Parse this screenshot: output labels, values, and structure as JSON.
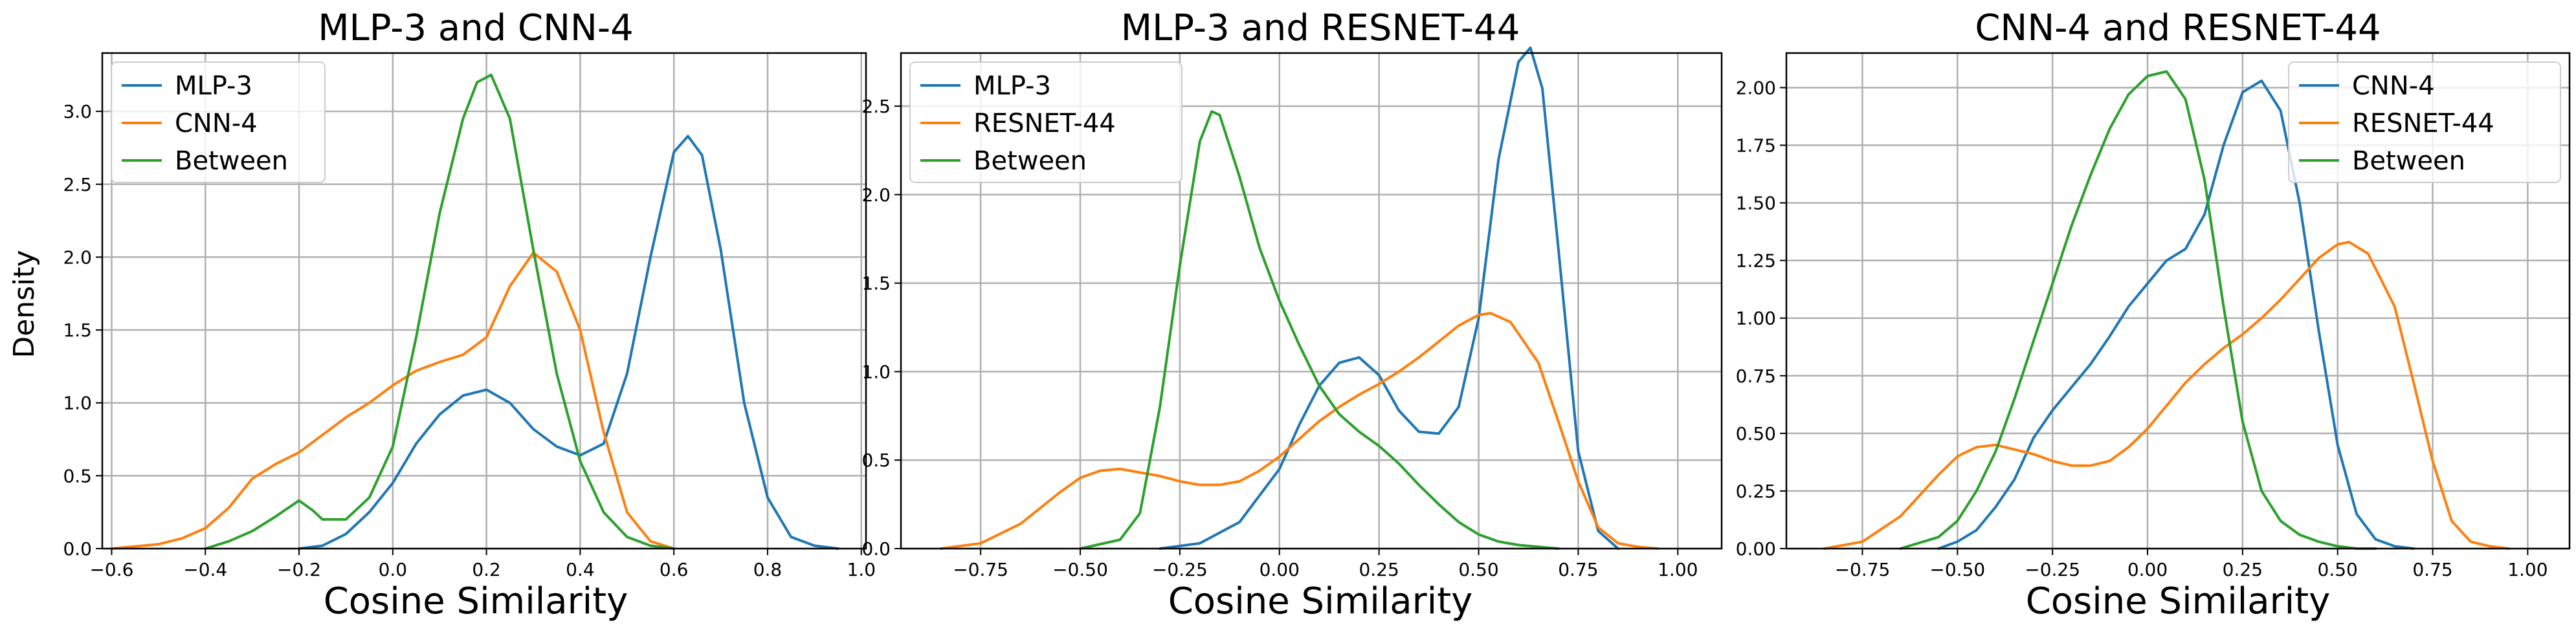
{
  "figure": {
    "ylabel": "Density",
    "xlabel": "Cosine Similarity"
  },
  "colors": {
    "blue": "#1f77b4",
    "orange": "#ff7f0e",
    "green": "#2ca02c"
  },
  "chart_data": [
    {
      "type": "line",
      "title": "MLP-3 and CNN-4",
      "xlabel": "Cosine Similarity",
      "ylabel": "Density",
      "xlim": [
        -0.62,
        1.01
      ],
      "ylim": [
        0,
        3.4
      ],
      "xticks": [
        -0.6,
        -0.4,
        -0.2,
        0.0,
        0.2,
        0.4,
        0.6,
        0.8,
        1.0
      ],
      "xtick_labels": [
        "−0.6",
        "−0.4",
        "−0.2",
        "0.0",
        "0.2",
        "0.4",
        "0.6",
        "0.8",
        "1.0"
      ],
      "yticks": [
        0.0,
        0.5,
        1.0,
        1.5,
        2.0,
        2.5,
        3.0
      ],
      "ytick_labels": [
        "0.0",
        "0.5",
        "1.0",
        "1.5",
        "2.0",
        "2.5",
        "3.0"
      ],
      "grid": true,
      "legend_position": "upper left",
      "series": [
        {
          "name": "MLP-3",
          "color": "#1f77b4",
          "x": [
            -0.2,
            -0.15,
            -0.1,
            -0.05,
            0.0,
            0.05,
            0.1,
            0.15,
            0.2,
            0.25,
            0.3,
            0.35,
            0.4,
            0.45,
            0.5,
            0.55,
            0.6,
            0.63,
            0.66,
            0.7,
            0.75,
            0.8,
            0.85,
            0.9,
            0.95
          ],
          "y": [
            0.0,
            0.02,
            0.1,
            0.25,
            0.45,
            0.72,
            0.92,
            1.05,
            1.09,
            1.0,
            0.82,
            0.7,
            0.64,
            0.72,
            1.2,
            2.0,
            2.72,
            2.83,
            2.7,
            2.05,
            1.0,
            0.35,
            0.08,
            0.02,
            0.0
          ]
        },
        {
          "name": "CNN-4",
          "color": "#ff7f0e",
          "x": [
            -0.6,
            -0.5,
            -0.45,
            -0.4,
            -0.35,
            -0.3,
            -0.25,
            -0.2,
            -0.15,
            -0.1,
            -0.05,
            0.0,
            0.05,
            0.1,
            0.15,
            0.2,
            0.25,
            0.3,
            0.35,
            0.4,
            0.45,
            0.5,
            0.55,
            0.6
          ],
          "y": [
            0.0,
            0.03,
            0.07,
            0.14,
            0.28,
            0.48,
            0.58,
            0.66,
            0.78,
            0.9,
            1.0,
            1.12,
            1.22,
            1.28,
            1.33,
            1.45,
            1.8,
            2.03,
            1.9,
            1.5,
            0.8,
            0.25,
            0.05,
            0.0
          ]
        },
        {
          "name": "Between",
          "color": "#2ca02c",
          "x": [
            -0.4,
            -0.35,
            -0.3,
            -0.25,
            -0.2,
            -0.17,
            -0.15,
            -0.1,
            -0.05,
            0.0,
            0.05,
            0.1,
            0.15,
            0.18,
            0.21,
            0.25,
            0.3,
            0.35,
            0.4,
            0.45,
            0.5,
            0.55,
            0.6
          ],
          "y": [
            0.0,
            0.05,
            0.12,
            0.22,
            0.33,
            0.26,
            0.2,
            0.2,
            0.35,
            0.7,
            1.45,
            2.3,
            2.95,
            3.2,
            3.25,
            2.95,
            2.05,
            1.2,
            0.6,
            0.25,
            0.08,
            0.02,
            0.0
          ]
        }
      ]
    },
    {
      "type": "line",
      "title": "MLP-3 and RESNET-44",
      "xlabel": "Cosine Similarity",
      "ylabel": "",
      "xlim": [
        -0.95,
        1.11
      ],
      "ylim": [
        0,
        2.8
      ],
      "xticks": [
        -0.75,
        -0.5,
        -0.25,
        0.0,
        0.25,
        0.5,
        0.75,
        1.0
      ],
      "xtick_labels": [
        "−0.75",
        "−0.50",
        "−0.25",
        "0.00",
        "0.25",
        "0.50",
        "0.75",
        "1.00"
      ],
      "yticks": [
        0.0,
        0.5,
        1.0,
        1.5,
        2.0,
        2.5
      ],
      "ytick_labels": [
        "0.0",
        "0.5",
        "1.0",
        "1.5",
        "2.0",
        "2.5"
      ],
      "grid": true,
      "legend_position": "upper left",
      "series": [
        {
          "name": "MLP-3",
          "color": "#1f77b4",
          "x": [
            -0.3,
            -0.2,
            -0.1,
            0.0,
            0.05,
            0.1,
            0.15,
            0.2,
            0.25,
            0.3,
            0.35,
            0.4,
            0.45,
            0.5,
            0.55,
            0.6,
            0.63,
            0.66,
            0.7,
            0.75,
            0.8,
            0.85
          ],
          "y": [
            0.0,
            0.03,
            0.15,
            0.45,
            0.7,
            0.92,
            1.05,
            1.08,
            0.98,
            0.78,
            0.66,
            0.65,
            0.8,
            1.3,
            2.2,
            2.75,
            2.83,
            2.6,
            1.7,
            0.55,
            0.1,
            0.0
          ]
        },
        {
          "name": "RESNET-44",
          "color": "#ff7f0e",
          "x": [
            -0.85,
            -0.75,
            -0.65,
            -0.55,
            -0.5,
            -0.45,
            -0.4,
            -0.35,
            -0.3,
            -0.25,
            -0.2,
            -0.15,
            -0.1,
            -0.05,
            0.0,
            0.05,
            0.1,
            0.15,
            0.2,
            0.25,
            0.3,
            0.35,
            0.4,
            0.45,
            0.5,
            0.53,
            0.58,
            0.65,
            0.7,
            0.75,
            0.8,
            0.85,
            0.9,
            0.95
          ],
          "y": [
            0.0,
            0.03,
            0.14,
            0.32,
            0.4,
            0.44,
            0.45,
            0.43,
            0.41,
            0.38,
            0.36,
            0.36,
            0.38,
            0.44,
            0.52,
            0.62,
            0.72,
            0.8,
            0.87,
            0.93,
            1.0,
            1.08,
            1.17,
            1.26,
            1.32,
            1.33,
            1.28,
            1.05,
            0.72,
            0.38,
            0.12,
            0.03,
            0.01,
            0.0
          ]
        },
        {
          "name": "Between",
          "color": "#2ca02c",
          "x": [
            -0.5,
            -0.4,
            -0.35,
            -0.3,
            -0.25,
            -0.2,
            -0.17,
            -0.15,
            -0.1,
            -0.05,
            0.0,
            0.05,
            0.1,
            0.15,
            0.2,
            0.25,
            0.3,
            0.35,
            0.4,
            0.45,
            0.5,
            0.55,
            0.6,
            0.65,
            0.7
          ],
          "y": [
            0.0,
            0.05,
            0.2,
            0.8,
            1.6,
            2.3,
            2.47,
            2.45,
            2.1,
            1.7,
            1.4,
            1.15,
            0.92,
            0.76,
            0.66,
            0.58,
            0.48,
            0.36,
            0.25,
            0.15,
            0.08,
            0.04,
            0.02,
            0.01,
            0.0
          ]
        }
      ]
    },
    {
      "type": "line",
      "title": "CNN-4 and RESNET-44",
      "xlabel": "Cosine Similarity",
      "ylabel": "",
      "xlim": [
        -0.95,
        1.11
      ],
      "ylim": [
        0,
        2.15
      ],
      "xticks": [
        -0.75,
        -0.5,
        -0.25,
        0.0,
        0.25,
        0.5,
        0.75,
        1.0
      ],
      "xtick_labels": [
        "−0.75",
        "−0.50",
        "−0.25",
        "0.00",
        "0.25",
        "0.50",
        "0.75",
        "1.00"
      ],
      "yticks": [
        0.0,
        0.25,
        0.5,
        0.75,
        1.0,
        1.25,
        1.5,
        1.75,
        2.0
      ],
      "ytick_labels": [
        "0.00",
        "0.25",
        "0.50",
        "0.75",
        "1.00",
        "1.25",
        "1.50",
        "1.75",
        "2.00"
      ],
      "grid": true,
      "legend_position": "upper right",
      "series": [
        {
          "name": "CNN-4",
          "color": "#1f77b4",
          "x": [
            -0.55,
            -0.5,
            -0.45,
            -0.4,
            -0.35,
            -0.3,
            -0.25,
            -0.2,
            -0.15,
            -0.1,
            -0.05,
            0.0,
            0.05,
            0.1,
            0.15,
            0.2,
            0.25,
            0.3,
            0.35,
            0.4,
            0.45,
            0.5,
            0.55,
            0.6,
            0.65,
            0.7
          ],
          "y": [
            0.0,
            0.03,
            0.08,
            0.18,
            0.3,
            0.48,
            0.6,
            0.7,
            0.8,
            0.92,
            1.05,
            1.15,
            1.25,
            1.3,
            1.45,
            1.75,
            1.98,
            2.03,
            1.9,
            1.5,
            0.95,
            0.45,
            0.15,
            0.04,
            0.01,
            0.0
          ]
        },
        {
          "name": "RESNET-44",
          "color": "#ff7f0e",
          "x": [
            -0.85,
            -0.75,
            -0.65,
            -0.55,
            -0.5,
            -0.45,
            -0.4,
            -0.35,
            -0.3,
            -0.25,
            -0.2,
            -0.15,
            -0.1,
            -0.05,
            0.0,
            0.05,
            0.1,
            0.15,
            0.2,
            0.25,
            0.3,
            0.35,
            0.4,
            0.45,
            0.5,
            0.53,
            0.58,
            0.65,
            0.7,
            0.75,
            0.8,
            0.85,
            0.9,
            0.95
          ],
          "y": [
            0.0,
            0.03,
            0.14,
            0.32,
            0.4,
            0.44,
            0.45,
            0.43,
            0.41,
            0.38,
            0.36,
            0.36,
            0.38,
            0.44,
            0.52,
            0.62,
            0.72,
            0.8,
            0.87,
            0.93,
            1.0,
            1.08,
            1.17,
            1.26,
            1.32,
            1.33,
            1.28,
            1.05,
            0.72,
            0.38,
            0.12,
            0.03,
            0.01,
            0.0
          ]
        },
        {
          "name": "Between",
          "color": "#2ca02c",
          "x": [
            -0.65,
            -0.55,
            -0.5,
            -0.45,
            -0.4,
            -0.35,
            -0.3,
            -0.25,
            -0.2,
            -0.15,
            -0.1,
            -0.05,
            0.0,
            0.05,
            0.1,
            0.15,
            0.2,
            0.25,
            0.3,
            0.35,
            0.4,
            0.45,
            0.5,
            0.55,
            0.6
          ],
          "y": [
            0.0,
            0.05,
            0.12,
            0.25,
            0.42,
            0.65,
            0.9,
            1.15,
            1.4,
            1.62,
            1.82,
            1.97,
            2.05,
            2.07,
            1.95,
            1.6,
            1.05,
            0.55,
            0.25,
            0.12,
            0.06,
            0.03,
            0.01,
            0.0,
            0.0
          ]
        }
      ]
    }
  ]
}
